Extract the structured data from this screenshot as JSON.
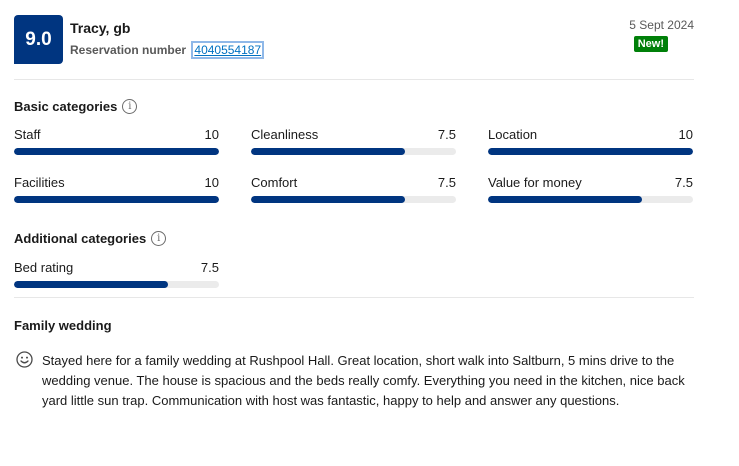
{
  "review": {
    "score": "9.0",
    "guest": "Tracy, gb",
    "reservation_label": "Reservation number",
    "reservation_number": "4040554187",
    "date": "5 Sept 2024",
    "badge": "New!"
  },
  "basic": {
    "title": "Basic categories",
    "items": [
      {
        "label": "Staff",
        "value": "10",
        "fraction": 1.0
      },
      {
        "label": "Cleanliness",
        "value": "7.5",
        "fraction": 0.75
      },
      {
        "label": "Location",
        "value": "10",
        "fraction": 1.0
      },
      {
        "label": "Facilities",
        "value": "10",
        "fraction": 1.0
      },
      {
        "label": "Comfort",
        "value": "7.5",
        "fraction": 0.75
      },
      {
        "label": "Value for money",
        "value": "7.5",
        "fraction": 0.75
      }
    ]
  },
  "additional": {
    "title": "Additional categories",
    "items": [
      {
        "label": "Bed rating",
        "value": "7.5",
        "fraction": 0.75
      }
    ]
  },
  "body": {
    "title": "Family wedding",
    "text": "Stayed here for a family wedding at Rushpool Hall. Great location, short walk into Saltburn, 5 mins drive to the wedding venue. The house is spacious and the beds really comfy. Everything you need in the kitchen, nice back yard little sun trap. Communication with host was fantastic, happy to help and answer any questions."
  },
  "icons": {
    "info": "info-icon",
    "positive": "smiley-icon"
  },
  "colors": {
    "score_bg": "#003580",
    "bar": "#003580",
    "badge": "#008009",
    "link": "#0071c2"
  }
}
